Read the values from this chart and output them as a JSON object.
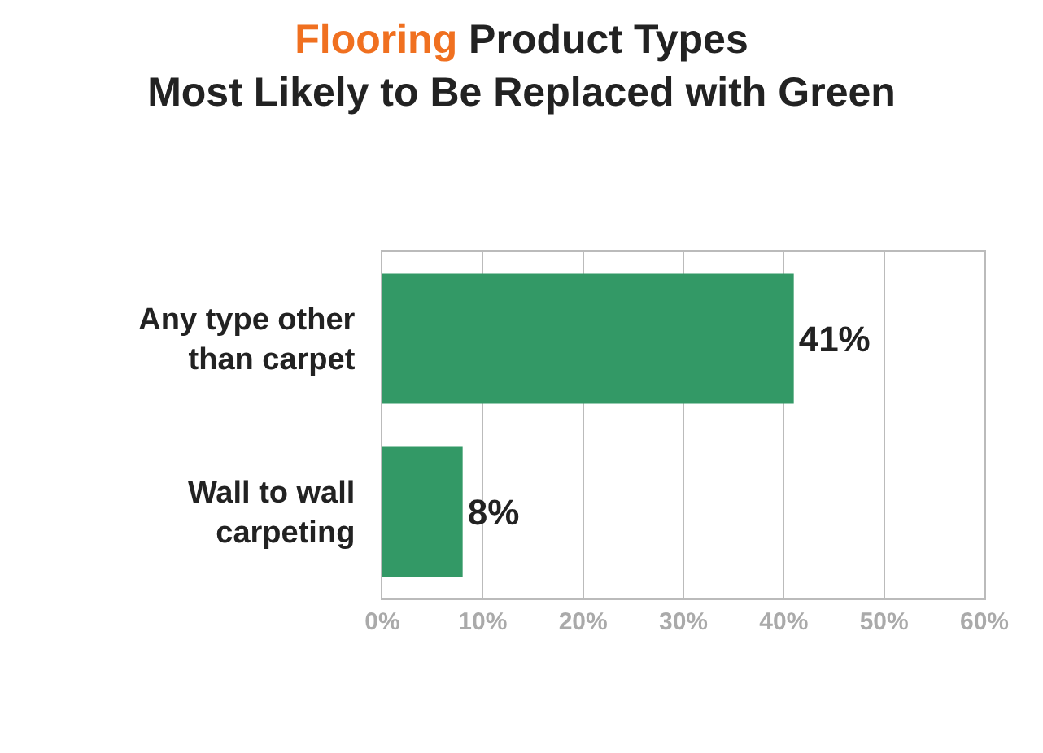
{
  "chart_data": {
    "type": "bar",
    "orientation": "horizontal",
    "title": "Flooring Product Types\nMost Likely to Be Replaced with Green",
    "categories": [
      "Any type other than carpet",
      "Wall to wall carpeting"
    ],
    "values": [
      41,
      8
    ],
    "color": "#339966",
    "xlim": [
      0,
      60
    ],
    "xticks": [
      {
        "value": 0,
        "label": "0%"
      },
      {
        "value": 10,
        "label": "10%"
      },
      {
        "value": 20,
        "label": "20%"
      },
      {
        "value": 30,
        "label": "30%"
      },
      {
        "value": 40,
        "label": "40%"
      },
      {
        "value": 50,
        "label": "50%"
      },
      {
        "value": 60,
        "label": "60%"
      }
    ],
    "value_labels": [
      "41%",
      "8%"
    ],
    "grid": "x",
    "legend": false
  }
}
